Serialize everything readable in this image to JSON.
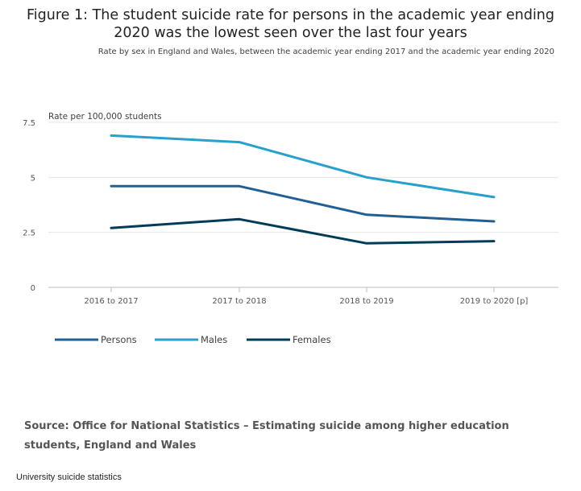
{
  "chart_data": {
    "type": "line",
    "title": "Figure 1: The student suicide rate for persons in the academic year ending 2020 was the lowest seen over the last four years",
    "subtitle": "Rate by sex in England and Wales, between the academic year ending 2017 and the academic year ending 2020",
    "ylabel": "Rate per 100,000 students",
    "xlabel": "",
    "categories": [
      "2016 to 2017",
      "2017 to 2018",
      "2018 to 2019",
      "2019 to 2020 [p]"
    ],
    "yticks": [
      {
        "value": 0,
        "label": "0"
      },
      {
        "value": 2.5,
        "label": "2.5"
      },
      {
        "value": 5,
        "label": "5"
      },
      {
        "value": 7.5,
        "label": "7.5"
      }
    ],
    "ylim": [
      0,
      7.5
    ],
    "grid": true,
    "legend_position": "bottom-left",
    "series": [
      {
        "name": "Persons",
        "color": "#206095",
        "values": [
          4.6,
          4.6,
          3.3,
          3.0
        ]
      },
      {
        "name": "Males",
        "color": "#27a0cc",
        "values": [
          6.9,
          6.6,
          5.0,
          4.1
        ]
      },
      {
        "name": "Females",
        "color": "#003c57",
        "values": [
          2.7,
          3.1,
          2.0,
          2.1
        ]
      }
    ]
  },
  "source": "Source: Office for National Statistics – Estimating suicide among higher education students, England and Wales",
  "footer": "University suicide statistics"
}
